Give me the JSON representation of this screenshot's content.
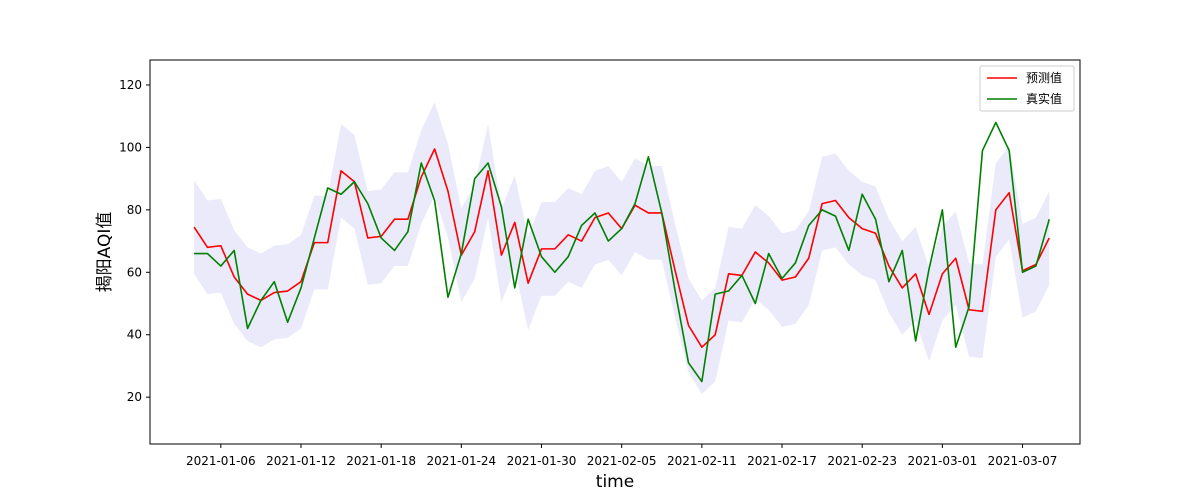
{
  "chart_data": {
    "type": "line",
    "title": "",
    "xlabel": "time",
    "ylabel": "揭阳AQI值",
    "x_start_date": "2021-01-04",
    "x_tick_labels": [
      "2021-01-06",
      "2021-01-12",
      "2021-01-18",
      "2021-01-24",
      "2021-01-30",
      "2021-02-05",
      "2021-02-11",
      "2021-02-17",
      "2021-02-23",
      "2021-03-01",
      "2021-03-07"
    ],
    "x_tick_positions": [
      2,
      8,
      14,
      20,
      26,
      32,
      38,
      44,
      50,
      56,
      62
    ],
    "y_ticks": [
      20,
      40,
      60,
      80,
      100,
      120
    ],
    "xlim": [
      -3.3,
      66.3
    ],
    "ylim": [
      5,
      128
    ],
    "grid": false,
    "legend_position": "top-right",
    "band": {
      "name": "",
      "color": "#e6e6fa",
      "offset": 15
    },
    "series": [
      {
        "name": "预测值",
        "color": "#ff0000",
        "values": [
          74.5,
          68,
          68.5,
          58.5,
          53,
          51,
          53.5,
          54,
          57,
          69.5,
          69.5,
          92.5,
          89,
          71,
          71.5,
          77,
          77,
          90.5,
          99.5,
          86,
          65.5,
          73,
          92.5,
          65.5,
          76,
          56.5,
          67.5,
          67.5,
          72,
          70,
          77.5,
          79,
          74,
          81.5,
          79,
          79,
          60.5,
          43,
          36,
          40,
          59.5,
          59,
          66.5,
          63,
          57.5,
          58.5,
          64.5,
          82,
          83,
          77.5,
          74,
          72.5,
          62,
          55,
          59.5,
          46.5,
          59.5,
          64.5,
          48,
          47.5,
          80,
          85.5,
          60.5,
          62.5,
          71
        ]
      },
      {
        "name": "真实值",
        "color": "#008000",
        "values": [
          66,
          66,
          62,
          67,
          42,
          51,
          57,
          44,
          55,
          71,
          87,
          85,
          89,
          82,
          71,
          67,
          73,
          95,
          83,
          52,
          66,
          90,
          95,
          81,
          55,
          77,
          65,
          60,
          65,
          75,
          79,
          70,
          74,
          82,
          97,
          79,
          54,
          31,
          25,
          53,
          54,
          59,
          50,
          66,
          58,
          63,
          75,
          80,
          78,
          67,
          85,
          77,
          57,
          67,
          38,
          61,
          80,
          36,
          49,
          99,
          108,
          99,
          60,
          62,
          77
        ]
      }
    ]
  }
}
